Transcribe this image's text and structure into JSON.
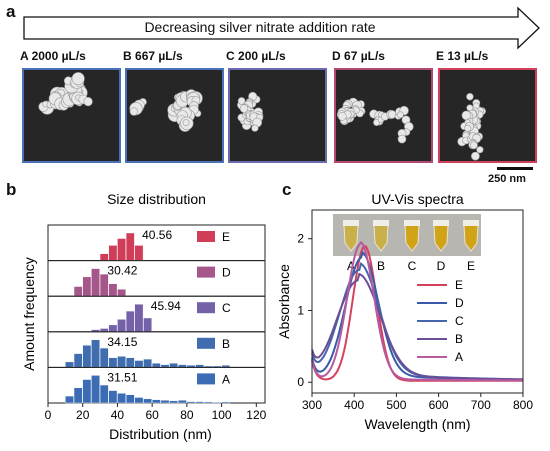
{
  "panel_a": {
    "letter": "a",
    "arrow_text": "Decreasing silver nitrate addition rate",
    "samples": [
      {
        "letter": "A",
        "rate": "2000 µL/s",
        "color": "#4a70b8"
      },
      {
        "letter": "B",
        "rate": "667 µL/s",
        "color": "#4a70b8"
      },
      {
        "letter": "C",
        "rate": "200 µL/s",
        "color": "#6a6ab0"
      },
      {
        "letter": "D",
        "rate": "67 µL/s",
        "color": "#b04a72"
      },
      {
        "letter": "E",
        "rate": "13 µL/s",
        "color": "#d0405a"
      }
    ],
    "scale_bar": "250 nm"
  },
  "panel_b": {
    "letter": "b"
  },
  "panel_c": {
    "letter": "c",
    "vial_labels": [
      "A",
      "B",
      "C",
      "D",
      "E"
    ]
  },
  "chart_data": [
    {
      "type": "bar",
      "title": "Size distribution",
      "xlabel": "Distribution (nm)",
      "ylabel": "Amount frequency",
      "xlim": [
        0,
        125
      ],
      "xticks": [
        0,
        20,
        40,
        60,
        80,
        100,
        120
      ],
      "bin_width": 5,
      "series": [
        {
          "name": "E",
          "mean_label": "40.56",
          "color": "#cf3d58",
          "bins": [
            30,
            35,
            40,
            45,
            50
          ],
          "values": [
            0.25,
            0.55,
            0.8,
            1.0,
            0.55
          ]
        },
        {
          "name": "D",
          "mean_label": "30.42",
          "color": "#a5568a",
          "bins": [
            15,
            20,
            25,
            30,
            35,
            40
          ],
          "values": [
            0.35,
            0.7,
            1.0,
            0.8,
            0.45,
            0.25
          ]
        },
        {
          "name": "C",
          "mean_label": "45.94",
          "color": "#7561a8",
          "bins": [
            25,
            30,
            35,
            40,
            45,
            50,
            55
          ],
          "values": [
            0.08,
            0.12,
            0.25,
            0.45,
            0.75,
            1.0,
            0.5
          ]
        },
        {
          "name": "B",
          "mean_label": "34.15",
          "color": "#3f6db0",
          "bins": [
            10,
            15,
            20,
            25,
            30,
            35,
            40,
            45,
            50,
            55,
            60,
            65,
            70,
            75,
            80,
            85,
            90,
            95,
            100
          ],
          "values": [
            0.2,
            0.5,
            0.8,
            1.0,
            0.7,
            0.35,
            0.4,
            0.35,
            0.25,
            0.3,
            0.15,
            0.1,
            0.15,
            0.1,
            0.08,
            0.1,
            0.05,
            0.05,
            0.08
          ]
        },
        {
          "name": "A",
          "mean_label": "31.51",
          "color": "#3c6db4",
          "bins": [
            10,
            15,
            20,
            25,
            30,
            35,
            40,
            45,
            50,
            55,
            60,
            65,
            70,
            75,
            80,
            85,
            90,
            95,
            100
          ],
          "values": [
            0.25,
            0.55,
            0.85,
            1.0,
            0.65,
            0.45,
            0.35,
            0.3,
            0.2,
            0.15,
            0.12,
            0.1,
            0.08,
            0.1,
            0.05,
            0.05,
            0.04,
            0.03,
            0.04
          ]
        }
      ]
    },
    {
      "type": "line",
      "title": "UV-Vis spectra",
      "xlabel": "Wavelength (nm)",
      "ylabel": "Absorbance",
      "xlim": [
        300,
        800
      ],
      "ylim": [
        -0.15,
        2.4
      ],
      "xticks": [
        300,
        400,
        500,
        600,
        700,
        800
      ],
      "yticks": [
        0,
        1,
        2
      ],
      "legend_position": "right",
      "series": [
        {
          "name": "E",
          "color": "#d6405f",
          "peak": 425,
          "amp": 1.88,
          "width": 40,
          "tail": 0.0
        },
        {
          "name": "D",
          "color": "#3a5aa8",
          "peak": 418,
          "amp": 1.7,
          "width": 55,
          "tail": 0.09
        },
        {
          "name": "C",
          "color": "#4566ae",
          "peak": 412,
          "amp": 1.52,
          "width": 66,
          "tail": 0.12
        },
        {
          "name": "B",
          "color": "#6a4f96",
          "peak": 410,
          "amp": 1.38,
          "width": 72,
          "tail": 0.11
        },
        {
          "name": "A",
          "color": "#b65aa0",
          "peak": 415,
          "amp": 1.9,
          "width": 45,
          "tail": 0.03
        }
      ]
    }
  ]
}
